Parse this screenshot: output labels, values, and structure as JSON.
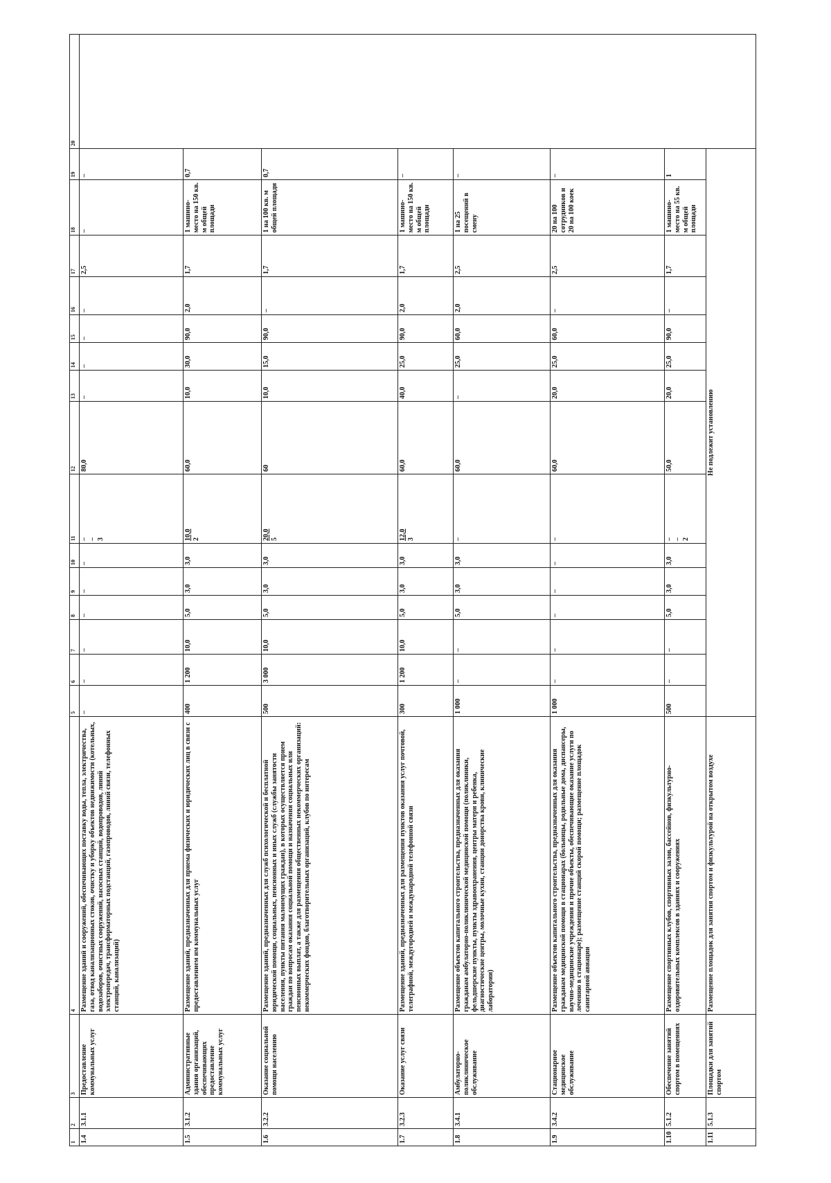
{
  "header": [
    "1",
    "2",
    "3",
    "4",
    "5",
    "6",
    "7",
    "8",
    "9",
    "10",
    "11",
    "12",
    "13",
    "14",
    "15",
    "16",
    "17",
    "18",
    "19",
    "20"
  ],
  "rows": [
    {
      "cells": [
        "1.4",
        "3.1.1",
        "Предоставление коммунальных услуг",
        "Размещение зданий и сооружений, обеспечивающих поставку воды, тепла, электричества, газа, отвод канализационных стоков, очистку и уборку объектов недвижимости (котельных, водозаборов, очистных сооружений, насосных станций, водопроводов, линий электропередач, трансформаторных подстанций, газопроводов, линий связи, телефонных станций, канализаций)",
        "–",
        "–",
        "–",
        "–",
        "–",
        "–",
        [
          "–",
          "–",
          "3"
        ],
        "80,0",
        "–",
        "–",
        "–",
        "–",
        "2,5",
        "–",
        "–"
      ]
    },
    {
      "cells": [
        "1.5",
        "3.1.2",
        "Административные здания организаций, обеспечивающих предоставление коммунальных услуг",
        "Размещение зданий, предназначенных для приема физических и юридических лиц в связи с предоставлением им коммунальных услуг",
        "400",
        "1 200",
        "10,0",
        "5,0",
        "3,0",
        "3,0",
        [
          "10,0",
          "2"
        ],
        "60,0",
        "10,0",
        "30,0",
        "90,0",
        "2,0",
        "1,7",
        "1 машино-место на 150 кв. м общей площади",
        "0,7"
      ]
    },
    {
      "cells": [
        "1.6",
        "3.2.2",
        "Оказание социальной помощи населению",
        "Размещение зданий, предназначенных для служб психологической и бесплатной юридической помощи, социальных, пенсионных и иных служб (службы занятости населения, пункты питания малоимущих граждан), в которых осуществляется прием граждан по вопросам оказания социальной помощи и назначения социальных или пенсионных выплат, а также для размещения общественных некоммерческих организаций: некоммерческих фондов, благотворительных организаций, клубов по интересам",
        "500",
        "3 000",
        "10,0",
        "5,0",
        "3,0",
        "3,0",
        [
          "20,0",
          "5"
        ],
        "60",
        "10,0",
        "15,0",
        "90,0",
        "–",
        "1,7",
        "1 на 100 кв. м общей площади",
        "0,7"
      ]
    },
    {
      "cells": [
        "1.7",
        "3.2.3",
        "Оказание услуг связи",
        "Размещение зданий, предназначенных для размещения пунктов оказания услуг почтовой, телеграфной, междугородней и международной телефонной связи",
        "300",
        "1 200",
        "10,0",
        "5,0",
        "3,0",
        "3,0",
        [
          "12,0",
          "3"
        ],
        "60,0",
        "40,0",
        "25,0",
        "90,0",
        "2,0",
        "1,7",
        "1 машино-место на 150 кв. м общей площади",
        "–"
      ]
    },
    {
      "cells": [
        "1.8",
        "3.4.1",
        "Амбулаторно-поликлиническое обслуживание",
        "Размещение объектов капитального строительства, предназначенных для оказания гражданам амбулаторно-поликлинической медицинской помощи (поликлиники, фельдшерские пункты, пункты здравоохранения, центры матери и ребенка, диагностические центры, молочные кухни, станции донорства крови, клинические лаборатории)",
        "1 000",
        "–",
        "–",
        "5,0",
        "3,0",
        "3,0",
        "–",
        "60,0",
        "–",
        "25,0",
        "60,0",
        "2,0",
        "2,5",
        "1 на 25 посещений в смену",
        "–"
      ]
    },
    {
      "cells": [
        "1.9",
        "3.4.2",
        "Стационарное медицинское обслуживание",
        "Размещение объектов капитального строительства, предназначенных для оказания гражданам медицинской помощи в стационарах (больницы, родильные дома, диспансеры, научно-медицинские учреждения и прочие объекты, обеспечивающие оказание услуги по лечению в стационаре); размещение станций скорой помощи; размещение площадок санитарной авиации",
        "1 000",
        "–",
        "–",
        "–",
        "–",
        "–",
        "–",
        "60,0",
        "20,0",
        "25,0",
        "60,0",
        "–",
        "2,5",
        "20 на 100 сотрудников и 20 на 100 коек",
        "–"
      ]
    },
    {
      "cells": [
        "1.10",
        "5.1.2",
        "Обеспечение занятий спортом в помещениях",
        "Размещение спортивных клубов, спортивных залов, бассейнов, физкультурно-оздоровительных комплексов в зданиях и сооружениях",
        "500",
        "–",
        "–",
        "5,0",
        "3,0",
        "3,0",
        [
          "–",
          "–",
          "2"
        ],
        "50,0",
        "20,0",
        "25,0",
        "90,0",
        "–",
        "1,7",
        "1 машино-место на 55 кв. м общей площади",
        "1"
      ]
    },
    {
      "cells": [
        "1.11",
        "5.1.3",
        "Площадки для занятий спортом",
        "Размещение площадок для занятия спортом и физкультурой на открытом воздухе"
      ],
      "merged": "Не подлежит установлению"
    }
  ]
}
